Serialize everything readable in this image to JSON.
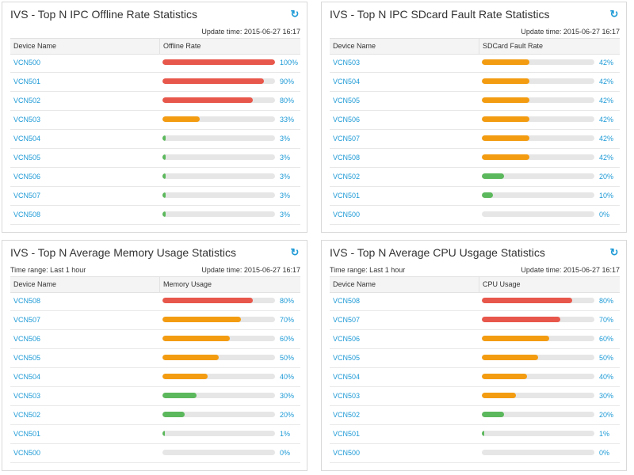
{
  "colors": {
    "red": "#e8574b",
    "orange": "#f39c12",
    "green": "#5cb85c",
    "link": "#1e9ad6"
  },
  "panels": [
    {
      "title": "IVS - Top N IPC Offline Rate Statistics",
      "refresh_icon": "refresh-icon",
      "time_range": "",
      "update_time": "Update time: 2015-06-27 16:17",
      "col_device": "Device Name",
      "col_metric": "Offline Rate",
      "rows": [
        {
          "device": "VCN500",
          "percent": "100%",
          "value": 100,
          "color": "red"
        },
        {
          "device": "VCN501",
          "percent": "90%",
          "value": 90,
          "color": "red"
        },
        {
          "device": "VCN502",
          "percent": "80%",
          "value": 80,
          "color": "red"
        },
        {
          "device": "VCN503",
          "percent": "33%",
          "value": 33,
          "color": "orange"
        },
        {
          "device": "VCN504",
          "percent": "3%",
          "value": 3,
          "color": "green"
        },
        {
          "device": "VCN505",
          "percent": "3%",
          "value": 3,
          "color": "green"
        },
        {
          "device": "VCN506",
          "percent": "3%",
          "value": 3,
          "color": "green"
        },
        {
          "device": "VCN507",
          "percent": "3%",
          "value": 3,
          "color": "green"
        },
        {
          "device": "VCN508",
          "percent": "3%",
          "value": 3,
          "color": "green"
        }
      ]
    },
    {
      "title": "IVS - Top N IPC SDcard Fault Rate Statistics",
      "refresh_icon": "refresh-icon",
      "time_range": "",
      "update_time": "Update time: 2015-06-27 16:17",
      "col_device": "Device Name",
      "col_metric": "SDCard Fault Rate",
      "rows": [
        {
          "device": "VCN503",
          "percent": "42%",
          "value": 42,
          "color": "orange"
        },
        {
          "device": "VCN504",
          "percent": "42%",
          "value": 42,
          "color": "orange"
        },
        {
          "device": "VCN505",
          "percent": "42%",
          "value": 42,
          "color": "orange"
        },
        {
          "device": "VCN506",
          "percent": "42%",
          "value": 42,
          "color": "orange"
        },
        {
          "device": "VCN507",
          "percent": "42%",
          "value": 42,
          "color": "orange"
        },
        {
          "device": "VCN508",
          "percent": "42%",
          "value": 42,
          "color": "orange"
        },
        {
          "device": "VCN502",
          "percent": "20%",
          "value": 20,
          "color": "green"
        },
        {
          "device": "VCN501",
          "percent": "10%",
          "value": 10,
          "color": "green"
        },
        {
          "device": "VCN500",
          "percent": "0%",
          "value": 0,
          "color": "green"
        }
      ]
    },
    {
      "title": "IVS - Top N Average Memory Usage Statistics",
      "refresh_icon": "refresh-icon",
      "time_range": "Time range: Last 1 hour",
      "update_time": "Update time: 2015-06-27 16:17",
      "col_device": "Device Name",
      "col_metric": "Memory Usage",
      "rows": [
        {
          "device": "VCN508",
          "percent": "80%",
          "value": 80,
          "color": "red"
        },
        {
          "device": "VCN507",
          "percent": "70%",
          "value": 70,
          "color": "orange"
        },
        {
          "device": "VCN506",
          "percent": "60%",
          "value": 60,
          "color": "orange"
        },
        {
          "device": "VCN505",
          "percent": "50%",
          "value": 50,
          "color": "orange"
        },
        {
          "device": "VCN504",
          "percent": "40%",
          "value": 40,
          "color": "orange"
        },
        {
          "device": "VCN503",
          "percent": "30%",
          "value": 30,
          "color": "green"
        },
        {
          "device": "VCN502",
          "percent": "20%",
          "value": 20,
          "color": "green"
        },
        {
          "device": "VCN501",
          "percent": "1%",
          "value": 1,
          "color": "green"
        },
        {
          "device": "VCN500",
          "percent": "0%",
          "value": 0,
          "color": "green"
        }
      ]
    },
    {
      "title": "IVS - Top N Average CPU Usgage Statistics",
      "refresh_icon": "refresh-icon",
      "time_range": "Time range: Last 1 hour",
      "update_time": "Update time: 2015-06-27 16:17",
      "col_device": "Device Name",
      "col_metric": "CPU Usage",
      "rows": [
        {
          "device": "VCN508",
          "percent": "80%",
          "value": 80,
          "color": "red"
        },
        {
          "device": "VCN507",
          "percent": "70%",
          "value": 70,
          "color": "red"
        },
        {
          "device": "VCN506",
          "percent": "60%",
          "value": 60,
          "color": "orange"
        },
        {
          "device": "VCN505",
          "percent": "50%",
          "value": 50,
          "color": "orange"
        },
        {
          "device": "VCN504",
          "percent": "40%",
          "value": 40,
          "color": "orange"
        },
        {
          "device": "VCN503",
          "percent": "30%",
          "value": 30,
          "color": "orange"
        },
        {
          "device": "VCN502",
          "percent": "20%",
          "value": 20,
          "color": "green"
        },
        {
          "device": "VCN501",
          "percent": "1%",
          "value": 1,
          "color": "green"
        },
        {
          "device": "VCN500",
          "percent": "0%",
          "value": 0,
          "color": "green"
        }
      ]
    }
  ]
}
